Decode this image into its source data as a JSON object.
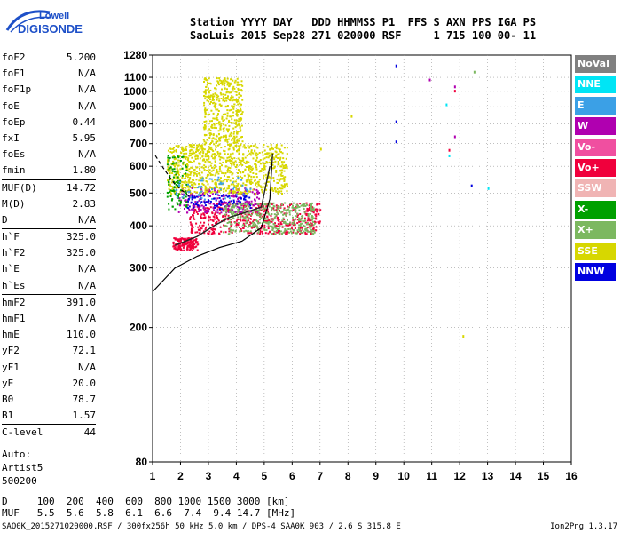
{
  "logo": {
    "line1": "Lowell",
    "line2": "DIGISONDE"
  },
  "header": {
    "line1": "Station YYYY DAY   DDD HHMMSS P1  FFS S AXN PPS IGA PS",
    "line2": "SaoLuis 2015 Sep28 271 020000 RSF     1 715 100 00- 11"
  },
  "params": [
    {
      "group": [
        {
          "k": "foF2",
          "v": "5.200"
        },
        {
          "k": "foF1",
          "v": "N/A"
        },
        {
          "k": "foF1p",
          "v": "N/A"
        },
        {
          "k": "foE",
          "v": "N/A"
        },
        {
          "k": "foEp",
          "v": "0.44"
        },
        {
          "k": "fxI",
          "v": "5.95"
        },
        {
          "k": "foEs",
          "v": "N/A"
        },
        {
          "k": "fmin",
          "v": "1.80"
        }
      ]
    },
    {
      "group": [
        {
          "k": "MUF(D)",
          "v": "14.72"
        },
        {
          "k": "M(D)",
          "v": "2.83"
        },
        {
          "k": "D",
          "v": "N/A"
        }
      ]
    },
    {
      "group": [
        {
          "k": "h`F",
          "v": "325.0"
        },
        {
          "k": "h`F2",
          "v": "325.0"
        },
        {
          "k": "h`E",
          "v": "N/A"
        },
        {
          "k": "h`Es",
          "v": "N/A"
        }
      ]
    },
    {
      "group": [
        {
          "k": "hmF2",
          "v": "391.0"
        },
        {
          "k": "hmF1",
          "v": "N/A"
        },
        {
          "k": "hmE",
          "v": "110.0"
        },
        {
          "k": "yF2",
          "v": "72.1"
        },
        {
          "k": "yF1",
          "v": "N/A"
        },
        {
          "k": "yE",
          "v": "20.0"
        },
        {
          "k": "B0",
          "v": "78.7"
        },
        {
          "k": "B1",
          "v": "1.57"
        }
      ]
    }
  ],
  "clevel": {
    "k": "C-level",
    "v": "44"
  },
  "auto": {
    "l1": "Auto:",
    "l2": "Artist5",
    "l3": "500200"
  },
  "footer": {
    "d_line": "D     100  200  400  600  800 1000 1500 3000 [km]",
    "muf_line": "MUF   5.5  5.6  5.8  6.1  6.6  7.4  9.4 14.7 [MHz]"
  },
  "info": "SAO0K_2015271020000.RSF / 300fx256h 50 kHz 5.0 km / DPS-4 SAA0K 903 / 2.6 S 315.8 E",
  "version": "Ion2Png 1.3.17",
  "legend": [
    {
      "label": "NoVal",
      "color": "#808080"
    },
    {
      "label": "NNE",
      "color": "#00e5f5"
    },
    {
      "label": "E",
      "color": "#3ba0e6"
    },
    {
      "label": "W",
      "color": "#b000b0"
    },
    {
      "label": "Vo-",
      "color": "#f04fa0"
    },
    {
      "label": "Vo+",
      "color": "#f0003c"
    },
    {
      "label": "SSW",
      "color": "#f0b4b4"
    },
    {
      "label": "X-",
      "color": "#00a000"
    },
    {
      "label": "X+",
      "color": "#7cb860"
    },
    {
      "label": "SSE",
      "color": "#d7d700"
    },
    {
      "label": "NNW",
      "color": "#0000e0"
    }
  ],
  "chart_data": {
    "type": "scatter",
    "xlim": [
      1,
      16
    ],
    "ylim": [
      80,
      1280
    ],
    "x_ticks": [
      1,
      2,
      3,
      4,
      5,
      6,
      7,
      8,
      9,
      10,
      11,
      12,
      13,
      14,
      15,
      16
    ],
    "y_ticks": [
      80,
      200,
      300,
      400,
      500,
      600,
      700,
      800,
      900,
      1000,
      1100,
      1280
    ],
    "y_scale": "log",
    "grid": "dotted",
    "clusters": [
      {
        "series": "Vo+",
        "x0": 1.7,
        "x1": 2.6,
        "y0": 340,
        "y1": 370,
        "n": 160
      },
      {
        "series": "Vo+",
        "x0": 2.3,
        "x1": 7.0,
        "y0": 380,
        "y1": 470,
        "n": 520
      },
      {
        "series": "W",
        "x0": 1.9,
        "x1": 4.8,
        "y0": 440,
        "y1": 520,
        "n": 220
      },
      {
        "series": "NNW",
        "x0": 2.2,
        "x1": 4.5,
        "y0": 450,
        "y1": 500,
        "n": 90
      },
      {
        "series": "X+",
        "x0": 3.5,
        "x1": 6.8,
        "y0": 380,
        "y1": 470,
        "n": 380
      },
      {
        "series": "SSE",
        "x0": 1.5,
        "x1": 5.8,
        "y0": 500,
        "y1": 700,
        "n": 900
      },
      {
        "series": "SSE",
        "x0": 2.8,
        "x1": 4.2,
        "y0": 700,
        "y1": 1100,
        "n": 420
      },
      {
        "series": "X-",
        "x0": 1.5,
        "x1": 2.2,
        "y0": 450,
        "y1": 650,
        "n": 90
      },
      {
        "series": "E",
        "x0": 1.8,
        "x1": 4.5,
        "y0": 480,
        "y1": 560,
        "n": 60
      }
    ],
    "extra_points": [
      {
        "series": "NNW",
        "x": 9.7,
        "y": 1200
      },
      {
        "series": "NNW",
        "x": 9.7,
        "y": 820
      },
      {
        "series": "NNW",
        "x": 9.7,
        "y": 715
      },
      {
        "series": "W",
        "x": 11.8,
        "y": 1040
      },
      {
        "series": "W",
        "x": 11.8,
        "y": 740
      },
      {
        "series": "Vo+",
        "x": 11.8,
        "y": 1010
      },
      {
        "series": "W",
        "x": 10.9,
        "y": 1090
      },
      {
        "series": "NNE",
        "x": 11.5,
        "y": 920
      },
      {
        "series": "NNE",
        "x": 11.6,
        "y": 650
      },
      {
        "series": "NNW",
        "x": 12.4,
        "y": 530
      },
      {
        "series": "SSE",
        "x": 12.1,
        "y": 190
      },
      {
        "series": "X+",
        "x": 12.5,
        "y": 1150
      },
      {
        "series": "SSE",
        "x": 8.1,
        "y": 850
      },
      {
        "series": "SSE",
        "x": 7.0,
        "y": 680
      },
      {
        "series": "Vo+",
        "x": 11.6,
        "y": 675
      },
      {
        "series": "NNE",
        "x": 13.0,
        "y": 520
      }
    ],
    "profile_curve": [
      [
        1.0,
        255
      ],
      [
        1.8,
        300
      ],
      [
        2.6,
        325
      ],
      [
        3.4,
        345
      ],
      [
        4.2,
        360
      ],
      [
        4.9,
        395
      ],
      [
        5.2,
        480
      ],
      [
        5.3,
        655
      ]
    ],
    "trace_curve": [
      [
        1.8,
        350
      ],
      [
        2.6,
        372
      ],
      [
        3.2,
        400
      ],
      [
        3.8,
        425
      ],
      [
        4.4,
        440
      ],
      [
        4.9,
        455
      ],
      [
        5.2,
        600
      ]
    ],
    "dashed_curve": [
      [
        1.1,
        645
      ],
      [
        1.4,
        590
      ],
      [
        1.8,
        530
      ],
      [
        2.3,
        490
      ]
    ]
  }
}
